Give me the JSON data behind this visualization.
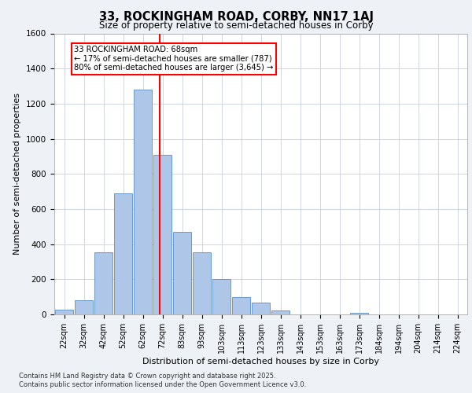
{
  "title_line1": "33, ROCKINGHAM ROAD, CORBY, NN17 1AJ",
  "title_line2": "Size of property relative to semi-detached houses in Corby",
  "xlabel": "Distribution of semi-detached houses by size in Corby",
  "ylabel": "Number of semi-detached properties",
  "footer_line1": "Contains HM Land Registry data © Crown copyright and database right 2025.",
  "footer_line2": "Contains public sector information licensed under the Open Government Licence v3.0.",
  "bar_labels": [
    "22sqm",
    "32sqm",
    "42sqm",
    "52sqm",
    "62sqm",
    "72sqm",
    "83sqm",
    "93sqm",
    "103sqm",
    "113sqm",
    "123sqm",
    "133sqm",
    "143sqm",
    "153sqm",
    "163sqm",
    "173sqm",
    "184sqm",
    "194sqm",
    "204sqm",
    "214sqm",
    "224sqm"
  ],
  "bar_values": [
    25,
    80,
    355,
    690,
    1280,
    910,
    470,
    355,
    200,
    100,
    65,
    22,
    0,
    0,
    0,
    10,
    0,
    0,
    0,
    0,
    0
  ],
  "bar_color": "#aec6e8",
  "bar_edge_color": "#5a8fc2",
  "vline_pos": 4.85,
  "vline_color": "red",
  "annotation_title": "33 ROCKINGHAM ROAD: 68sqm",
  "annotation_line1": "← 17% of semi-detached houses are smaller (787)",
  "annotation_line2": "80% of semi-detached houses are larger (3,645) →",
  "ylim": [
    0,
    1600
  ],
  "yticks": [
    0,
    200,
    400,
    600,
    800,
    1000,
    1200,
    1400,
    1600
  ],
  "bg_color": "#eef2f7",
  "plot_bg_color": "#ffffff",
  "grid_color": "#c8d0da"
}
